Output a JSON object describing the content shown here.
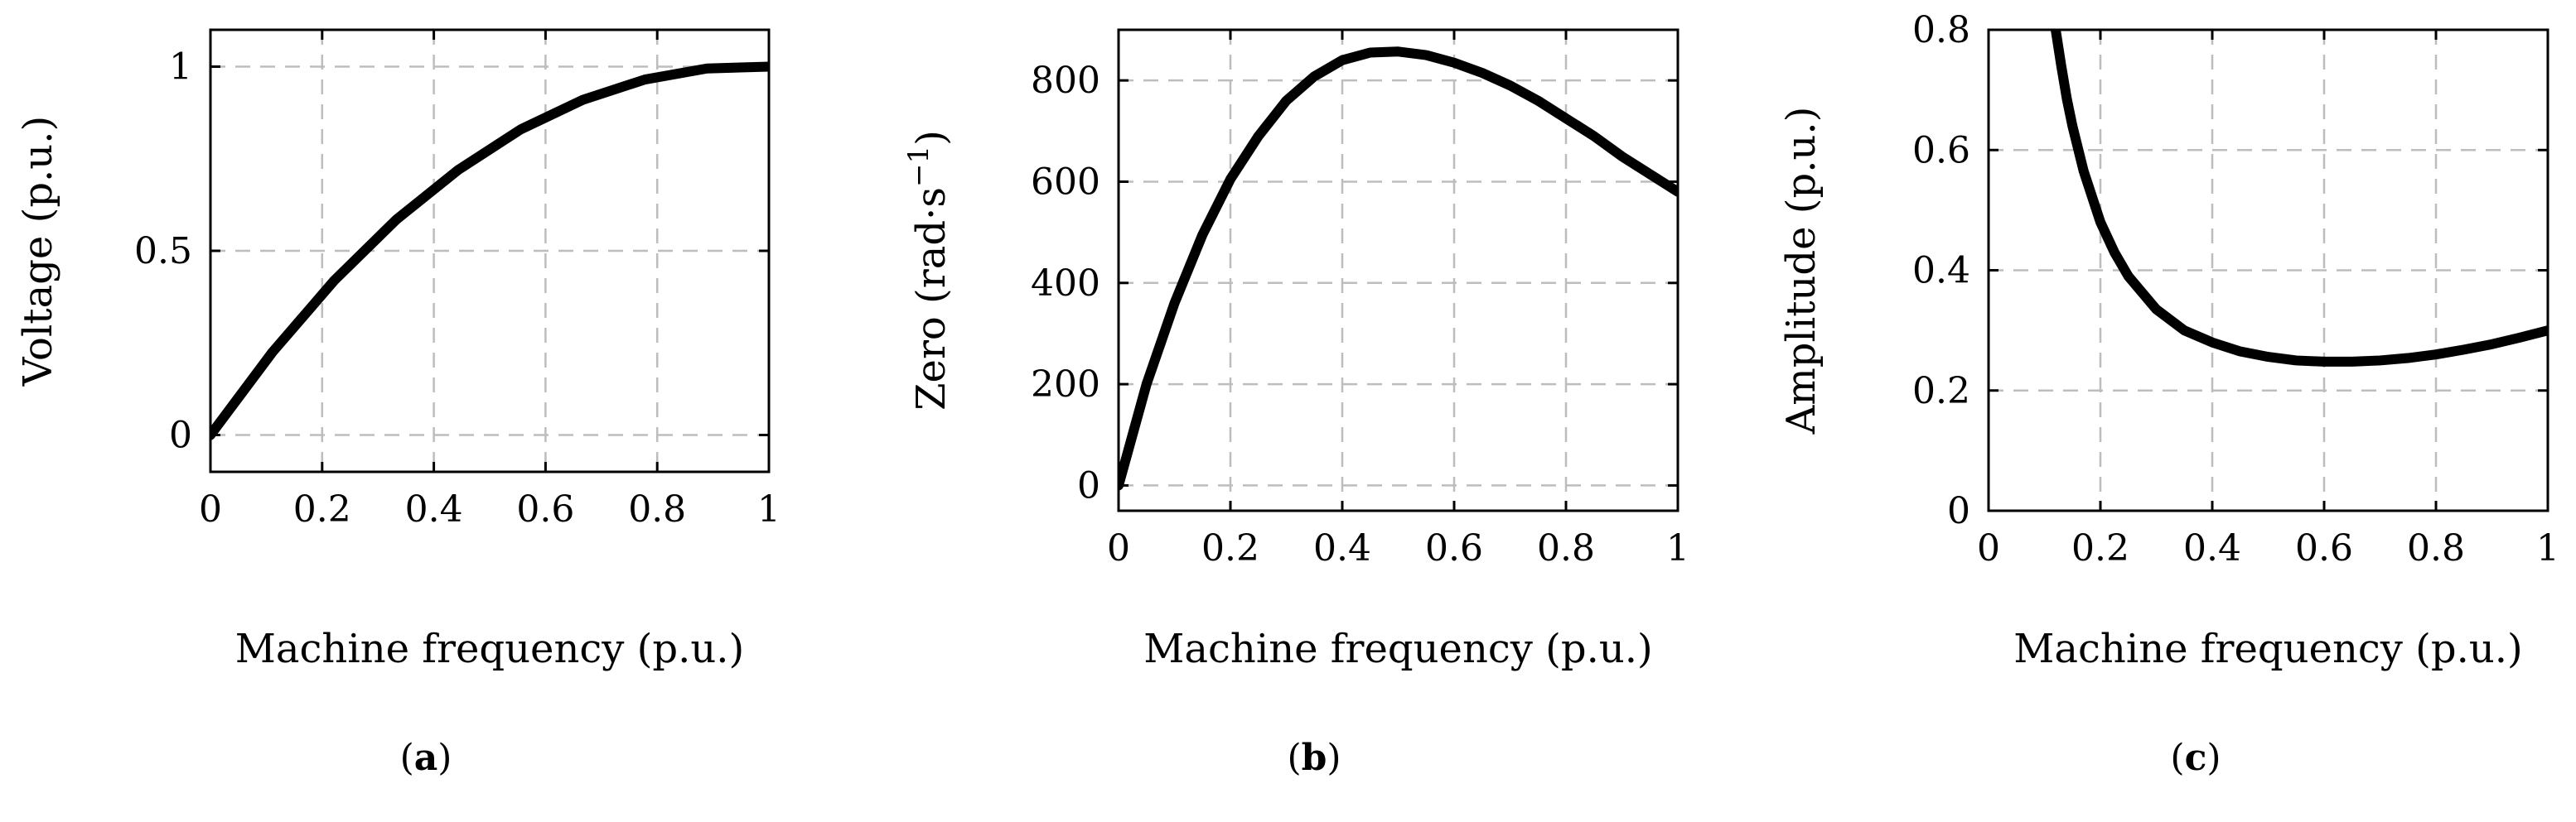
{
  "chart_data": [
    {
      "type": "line",
      "xlabel": "Machine frequency (p.u.)",
      "ylabel": "Voltage (p.u.)",
      "caption": "a",
      "xlim": [
        0,
        1
      ],
      "ylim": [
        -0.1,
        1.1
      ],
      "xticks": [
        "0",
        "0.2",
        "0.4",
        "0.6",
        "0.8",
        "1"
      ],
      "yticks": [
        "0",
        "0.5",
        "1"
      ],
      "grid": true,
      "series": [
        {
          "x": [
            0,
            0.111,
            0.222,
            0.333,
            0.444,
            0.556,
            0.667,
            0.778,
            0.889,
            1.0
          ],
          "y": [
            0,
            0.225,
            0.42,
            0.585,
            0.72,
            0.83,
            0.91,
            0.965,
            0.995,
            1.0
          ]
        }
      ]
    },
    {
      "type": "line",
      "xlabel": "Machine frequency (p.u.)",
      "ylabel": "Zero (rad·s",
      "ylabel_sup": "−1",
      "ylabel_tail": ")",
      "caption": "b",
      "xlim": [
        0,
        1
      ],
      "ylim": [
        -50,
        900
      ],
      "xticks": [
        "0",
        "0.2",
        "0.4",
        "0.6",
        "0.8",
        "1"
      ],
      "yticks": [
        "0",
        "200",
        "400",
        "600",
        "800"
      ],
      "grid": true,
      "series": [
        {
          "x": [
            0,
            0.05,
            0.1,
            0.15,
            0.2,
            0.25,
            0.3,
            0.35,
            0.4,
            0.45,
            0.5,
            0.55,
            0.6,
            0.65,
            0.7,
            0.75,
            0.8,
            0.85,
            0.9,
            0.95,
            1.0
          ],
          "y": [
            0,
            200,
            360,
            495,
            605,
            690,
            760,
            808,
            840,
            855,
            857,
            850,
            835,
            815,
            790,
            760,
            725,
            690,
            650,
            615,
            580
          ]
        }
      ]
    },
    {
      "type": "line",
      "xlabel": "Machine frequency (p.u.)",
      "ylabel": "Amplitude (p.u.)",
      "caption": "c",
      "xlim": [
        0,
        1
      ],
      "ylim": [
        0,
        0.8
      ],
      "xticks": [
        "0",
        "0.2",
        "0.4",
        "0.6",
        "0.8",
        "1"
      ],
      "yticks": [
        "0",
        "0.2",
        "0.4",
        "0.6",
        "0.8"
      ],
      "grid": true,
      "series": [
        {
          "x": [
            0.12,
            0.13,
            0.14,
            0.15,
            0.17,
            0.2,
            0.225,
            0.25,
            0.3,
            0.35,
            0.4,
            0.45,
            0.5,
            0.55,
            0.6,
            0.65,
            0.7,
            0.75,
            0.8,
            0.85,
            0.9,
            0.95,
            1.0
          ],
          "y": [
            0.8,
            0.74,
            0.685,
            0.64,
            0.565,
            0.48,
            0.43,
            0.39,
            0.335,
            0.3,
            0.28,
            0.265,
            0.256,
            0.25,
            0.248,
            0.248,
            0.25,
            0.254,
            0.26,
            0.268,
            0.277,
            0.288,
            0.3
          ]
        }
      ]
    }
  ]
}
